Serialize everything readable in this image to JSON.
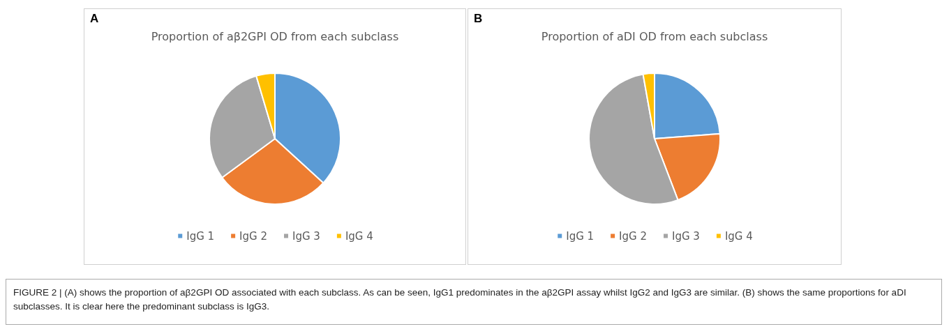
{
  "chart_data": [
    {
      "type": "pie",
      "title": "Proportion of aβ2GPI OD from each subclass",
      "annotations": [
        "A"
      ],
      "categories": [
        "IgG 1",
        "IgG 2",
        "IgG 3",
        "IgG 4"
      ],
      "values": [
        36.8,
        28.1,
        30.5,
        4.6
      ],
      "colors": [
        "#5b9bd5",
        "#ed7d31",
        "#a5a5a5",
        "#ffc000"
      ],
      "legend": "bottom"
    },
    {
      "type": "pie",
      "title": "Proportion of aDI OD from each subclass",
      "annotations": [
        "B",
        "FIGURE 2 | (A) shows the proportion of aβ2GPI OD associated with each subclass. As can be seen, IgG1 predominates in the aβ2GPI assay whilst IgG2 and IgG3 are similar. (B) shows the same proportions for aDI subclasses. It is clear here the predominant subclass is IgG3."
      ],
      "categories": [
        "IgG 1",
        "IgG 2",
        "IgG 3",
        "IgG 4"
      ],
      "values": [
        23.8,
        20.4,
        53.0,
        2.8
      ],
      "colors": [
        "#5b9bd5",
        "#ed7d31",
        "#a5a5a5",
        "#ffc000"
      ],
      "legend": "bottom"
    }
  ]
}
